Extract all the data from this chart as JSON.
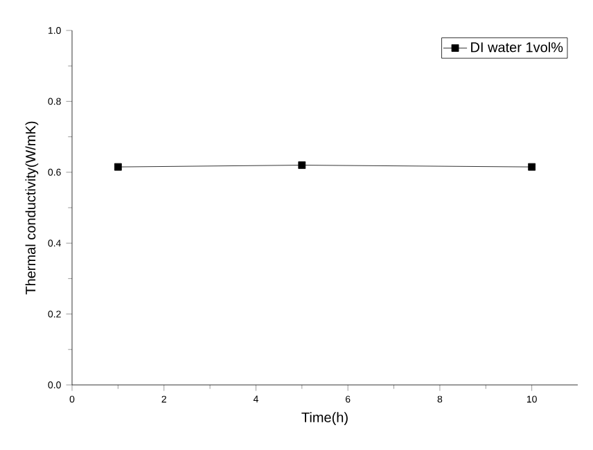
{
  "chart_data": {
    "type": "line",
    "xlabel": "Time(h)",
    "ylabel": "Thermal conductivity(W/mK)",
    "x": [
      1,
      5,
      10
    ],
    "series": [
      {
        "name": "DI water 1vol%",
        "color": "#000000",
        "values": [
          0.615,
          0.62,
          0.615
        ]
      }
    ],
    "xlim": [
      0,
      11
    ],
    "xticks": [
      0,
      2,
      4,
      6,
      8,
      10
    ],
    "ylim": [
      0,
      1.0
    ],
    "yticks": [
      {
        "value": 0,
        "label": "0.0"
      },
      {
        "value": 0.2,
        "label": "0.2"
      },
      {
        "value": 0.4,
        "label": "0.4"
      },
      {
        "value": 0.6,
        "label": "0.6"
      },
      {
        "value": 0.8,
        "label": "0.8"
      },
      {
        "value": 1.0,
        "label": "1.0"
      }
    ],
    "legend": "top right",
    "marker": "square",
    "line_style": "solid",
    "grid": false
  }
}
